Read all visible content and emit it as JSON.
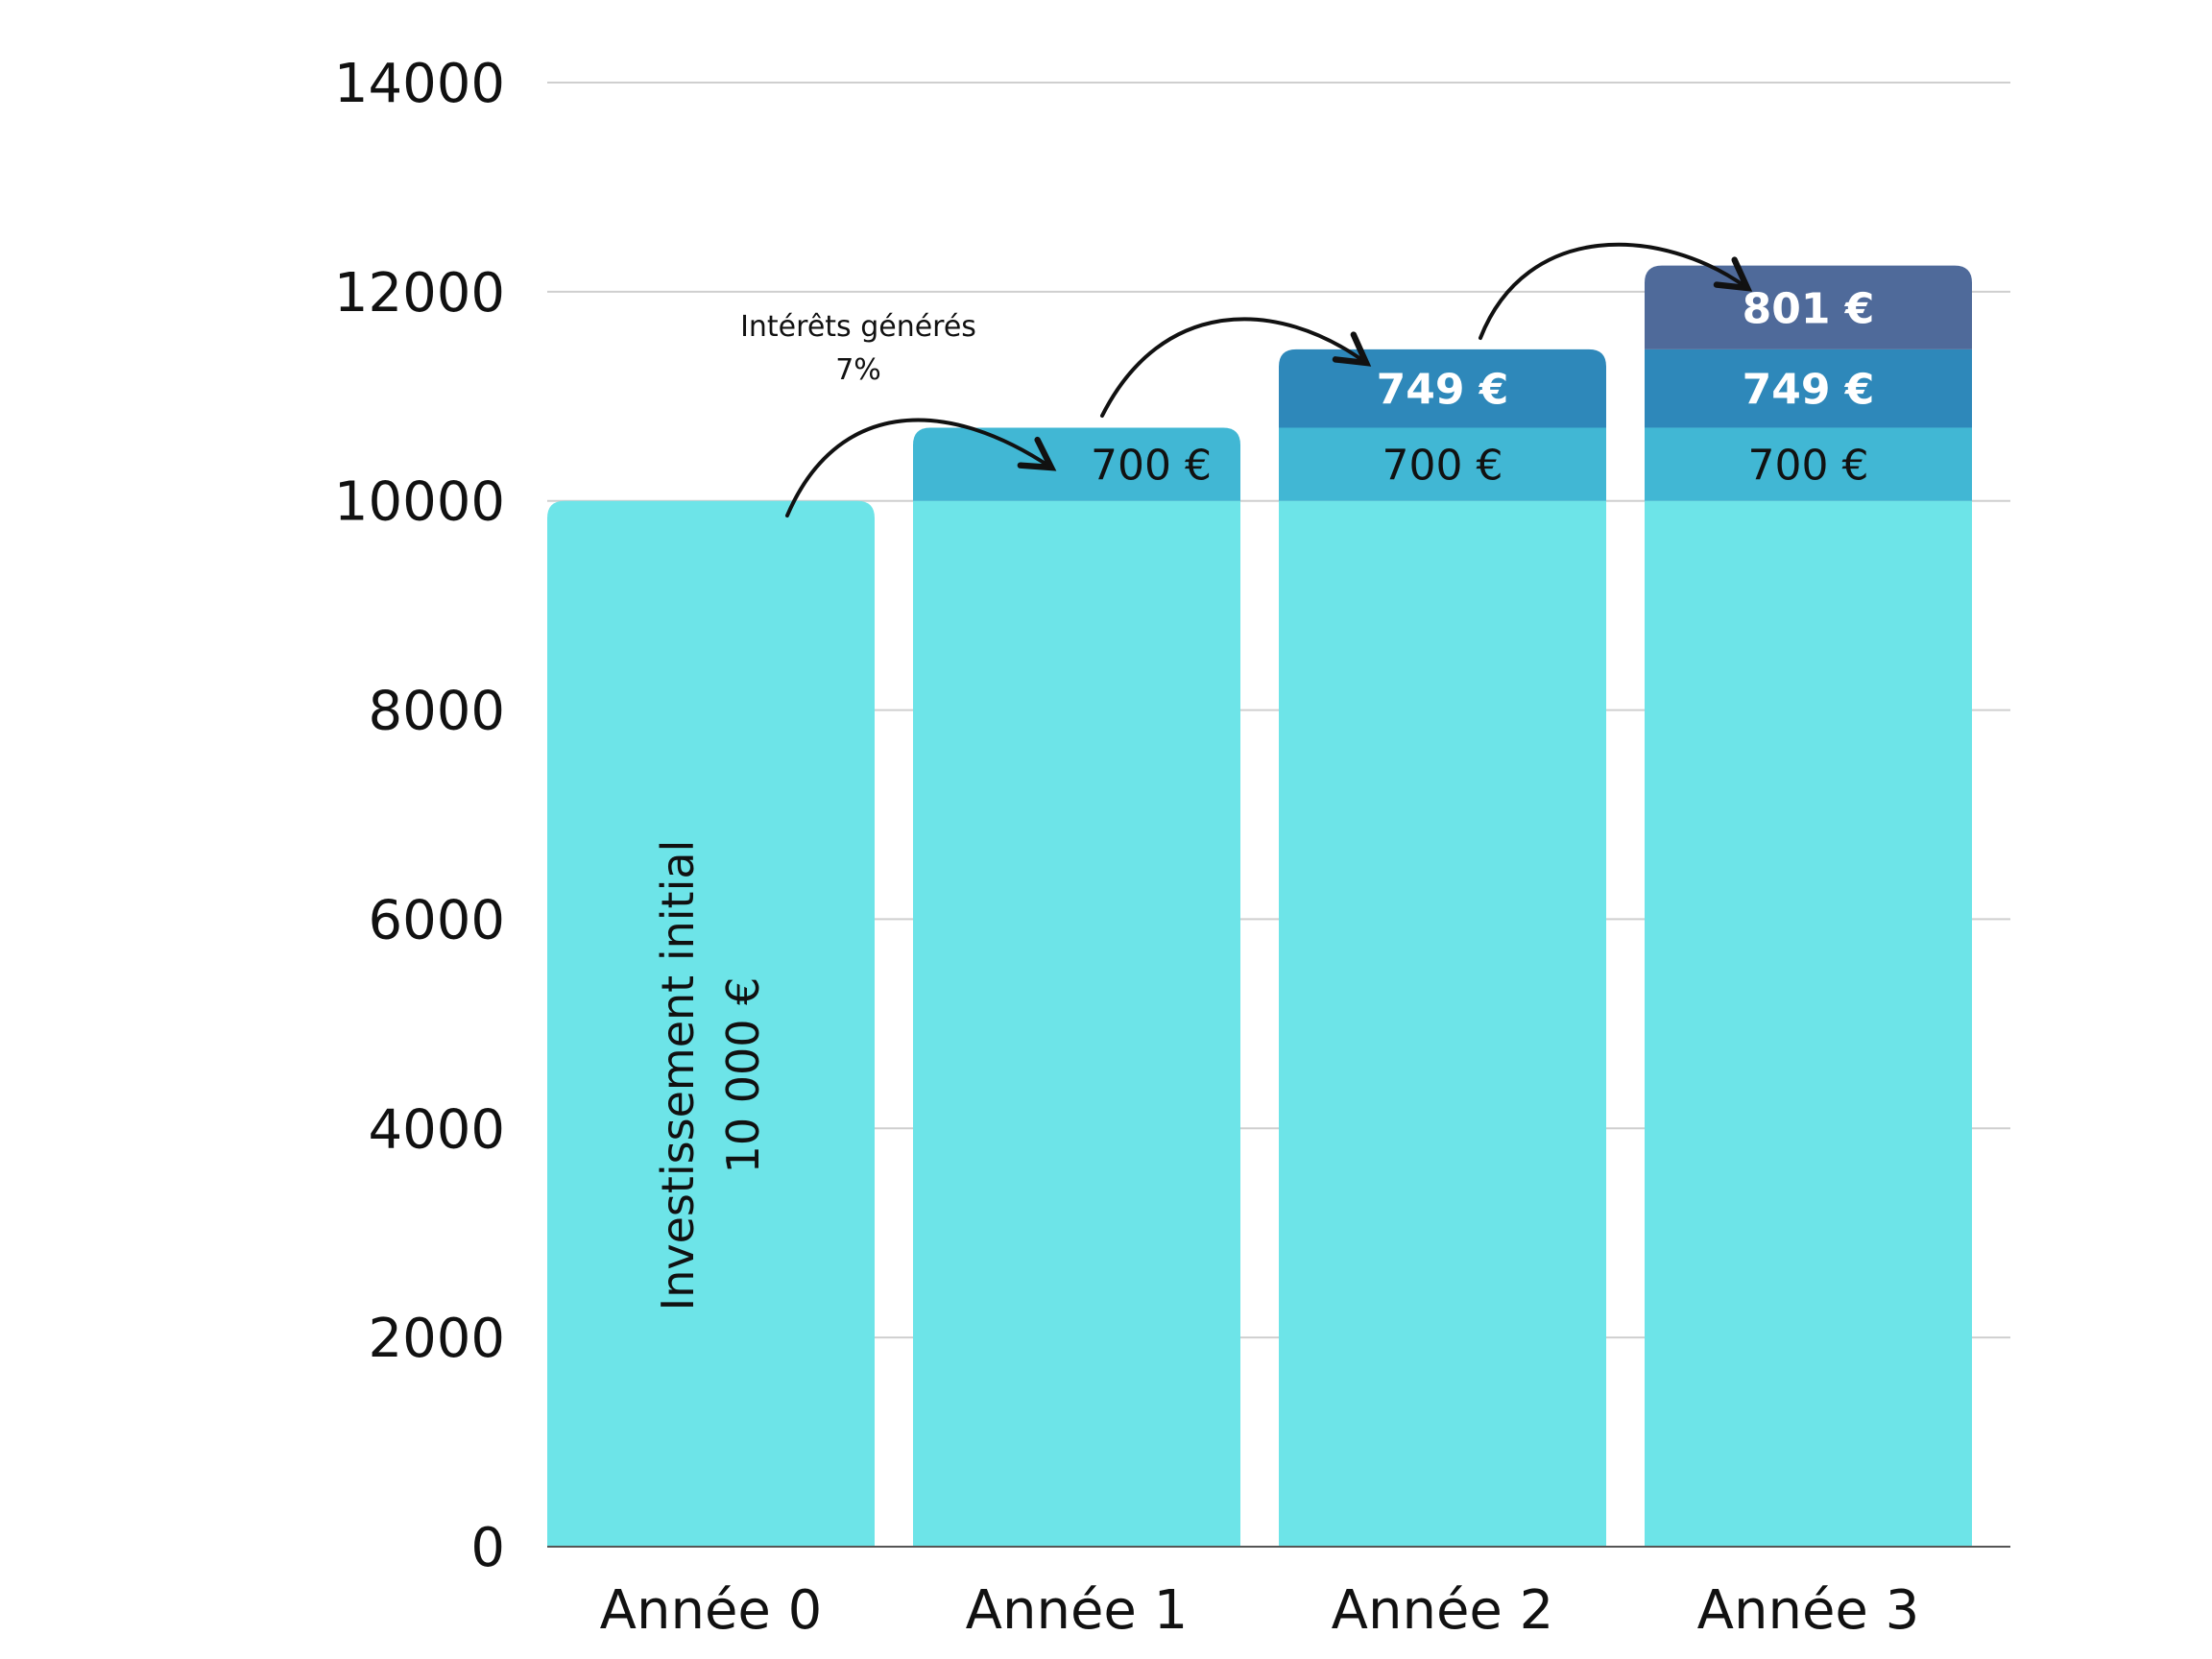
{
  "chart_data": {
    "type": "bar",
    "stacked": true,
    "title": "",
    "xlabel": "",
    "ylabel": "",
    "ylim": [
      0,
      14000
    ],
    "yticks": [
      0,
      2000,
      4000,
      6000,
      8000,
      10000,
      12000,
      14000
    ],
    "grid": true,
    "categories": [
      "Année 0",
      "Année 1",
      "Année 2",
      "Année 3"
    ],
    "series": [
      {
        "values": [
          10000,
          10000,
          10000,
          10000
        ],
        "color": "#6DE4E8"
      },
      {
        "values": [
          0,
          700,
          700,
          700
        ],
        "color": "#41B7D4",
        "labels": [
          "",
          "700 €",
          "700 €",
          "700 €"
        ]
      },
      {
        "values": [
          0,
          0,
          749,
          749
        ],
        "color": "#2E88BA",
        "labels": [
          "",
          "",
          "749 €",
          "749 €"
        ]
      },
      {
        "values": [
          0,
          0,
          0,
          801
        ],
        "color": "#4F6A9A",
        "labels": [
          "",
          "",
          "",
          "801 €"
        ]
      }
    ],
    "annotations": {
      "interest_label": "Intérêts générés",
      "interest_rate": "7%",
      "initial_label": "Investissement initial",
      "initial_amount": "10 000 €"
    }
  }
}
